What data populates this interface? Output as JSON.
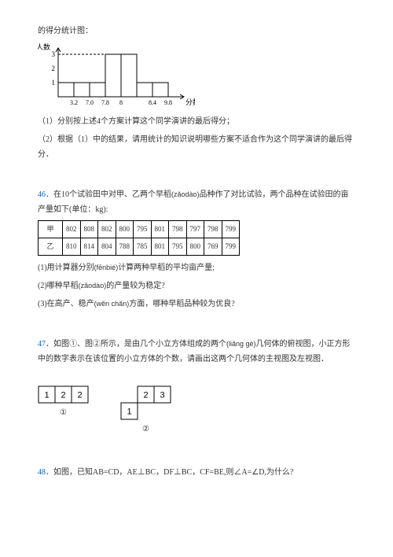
{
  "intro": "的得分统计图：",
  "chart": {
    "y_label": "人数",
    "x_label": "分数",
    "y_ticks": [
      "1",
      "2",
      "3"
    ],
    "x_ticks": [
      "3.2",
      "7.0",
      "7.8",
      "8",
      "",
      "8.4",
      "9.8"
    ],
    "bars": [
      1,
      1,
      1,
      3,
      3,
      1,
      1
    ],
    "label_fontsize": 9,
    "bar_color": "#ffffff",
    "outline_color": "#000000",
    "dash_color": "#000000"
  },
  "q_chart_1": "（1）分别按上述4个方案计算这个同学演讲的最后得分；",
  "q_chart_2": "（2）根据（1）中的结果，请用统计的知识说明哪些方案不适合作为这个同学演讲的最后得分．",
  "q46": {
    "num": "46．",
    "text_a": "在10个试验田中对甲、乙两个早稻",
    "pinyin_a": "(zǎodào)",
    "text_b": "品种作了对比试验，两个品种在试验田的亩产量如下(单位：kg):",
    "table": {
      "row1_label": "甲",
      "row1": [
        "802",
        "808",
        "802",
        "800",
        "795",
        "801",
        "798",
        "797",
        "798",
        "799"
      ],
      "row2_label": "乙",
      "row2": [
        "810",
        "814",
        "804",
        "788",
        "785",
        "801",
        "795",
        "800",
        "769",
        "799"
      ]
    },
    "sub1_a": "(1)用计算器分别",
    "sub1_pin": "(fēnbié)",
    "sub1_b": "计算两种早稻的平均亩产量;",
    "sub2_a": "(2)哪种早稻",
    "sub2_pin": "(zǎodào)",
    "sub2_b": "的产量较为稳定?",
    "sub3_a": "(3)在高产、稳产",
    "sub3_pin": "(wěn chǎn)",
    "sub3_b": "方面，哪种早稻品种较为优良?"
  },
  "q47": {
    "num": "47．",
    "text_a": "如图①、图②所示，是由几个小立方体组成的两个",
    "pin_a": "(liǎng gè)",
    "text_b": "几何体的俯视图，小正方形中的数字表示在该位置的小立方体的个数，请画出这两个几何体的主视图及左视图．",
    "view1": {
      "cells": [
        [
          "1",
          "2",
          "2"
        ]
      ],
      "label": "①"
    },
    "view2": {
      "cells": [
        [
          "",
          "2",
          "3"
        ],
        [
          "1",
          "",
          ""
        ]
      ],
      "label": "②"
    }
  },
  "q48": {
    "num": "48．",
    "text": "如图，已知AB=CD，AE⊥BC，DF⊥BC，CF=BE,则∠A=∠D,为什么?"
  }
}
